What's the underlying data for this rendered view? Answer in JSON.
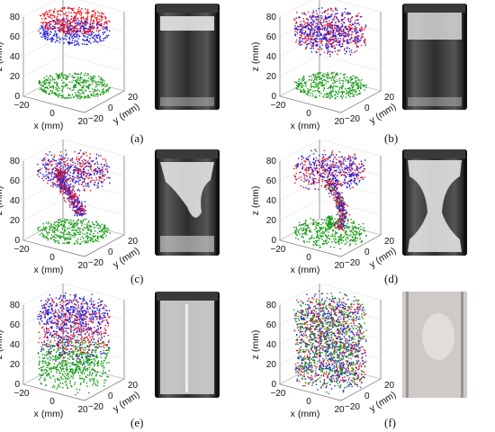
{
  "figure": {
    "panels": [
      {
        "id": "a",
        "caption": "(a)",
        "state": "layers",
        "z_ticks": [
          "0",
          "20",
          "40",
          "60",
          "80"
        ],
        "x_ticks": [
          "−20",
          "0",
          "20"
        ],
        "y_ticks": [
          "−20",
          "0",
          "20"
        ],
        "z_label": "z (mm)",
        "x_label": "x (mm)",
        "y_label": "y (mm)"
      },
      {
        "id": "b",
        "caption": "(b)",
        "state": "top-mixed",
        "z_ticks": [
          "0",
          "20",
          "40",
          "60",
          "80"
        ],
        "x_ticks": [
          "−20",
          "0",
          "20"
        ],
        "y_ticks": [
          "−20",
          "0",
          "20"
        ],
        "z_label": "z (mm)",
        "x_label": "x (mm)",
        "y_label": "y (mm)"
      },
      {
        "id": "c",
        "caption": "(c)",
        "state": "falling-plume",
        "z_ticks": [
          "0",
          "20",
          "40",
          "60",
          "80"
        ],
        "x_ticks": [
          "−20",
          "0",
          "20"
        ],
        "y_ticks": [
          "−20",
          "0",
          "20"
        ],
        "z_label": "z (mm)",
        "x_label": "x (mm)",
        "y_label": "y (mm)"
      },
      {
        "id": "d",
        "caption": "(d)",
        "state": "column-contact",
        "z_ticks": [
          "0",
          "20",
          "40",
          "60",
          "80"
        ],
        "x_ticks": [
          "−20",
          "0",
          "20"
        ],
        "y_ticks": [
          "−20",
          "0",
          "20"
        ],
        "z_label": "z (mm)",
        "x_label": "x (mm)",
        "y_label": "y (mm)"
      },
      {
        "id": "e",
        "caption": "(e)",
        "state": "bulk-mixing",
        "z_ticks": [
          "0",
          "20",
          "40",
          "60",
          "80"
        ],
        "x_ticks": [
          "−20",
          "0",
          "20"
        ],
        "y_ticks": [
          "−20",
          "0",
          "20"
        ],
        "z_label": "z (mm)",
        "x_label": "x (mm)",
        "y_label": "y (mm)"
      },
      {
        "id": "f",
        "caption": "(f)",
        "state": "fully-mixed",
        "z_ticks": [
          "0",
          "20",
          "40",
          "60",
          "80"
        ],
        "x_ticks": [
          "−20",
          "0",
          "20"
        ],
        "y_ticks": [
          "−20",
          "0",
          "20"
        ],
        "z_label": "z (mm)",
        "x_label": "x (mm)",
        "y_label": "y (mm)"
      }
    ],
    "colors": {
      "red": "#e8141b",
      "blue": "#1c1ce0",
      "green": "#129a12",
      "axis": "#555555"
    }
  }
}
